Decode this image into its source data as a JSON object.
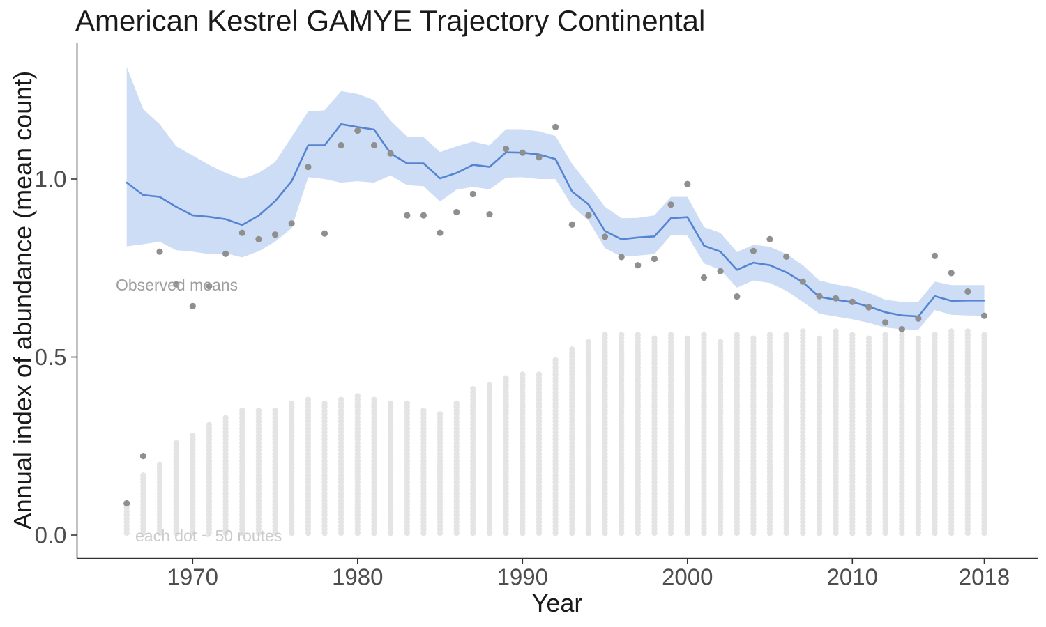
{
  "figure": {
    "title": "American Kestrel GAMYE Trajectory Continental",
    "xlabel": "Year",
    "ylabel": "Annual index of abundance (mean count)",
    "annotation_observed": "Observed means",
    "annotation_routes": "each dot ~ 50 routes"
  },
  "chart_data": {
    "type": "line",
    "title": "American Kestrel GAMYE Trajectory Continental",
    "xlabel": "Year",
    "ylabel": "Annual index of abundance (mean count)",
    "legend_position": "none",
    "grid": false,
    "xlim": [
      1963,
      2021
    ],
    "ylim": [
      -0.06,
      1.38
    ],
    "x_ticks": [
      1970,
      1980,
      1990,
      2000,
      2010,
      2018
    ],
    "x_tick_labels": [
      "1970",
      "1980",
      "1990",
      "2000",
      "2010",
      "2018"
    ],
    "y_tick_values": [
      0.0,
      0.5,
      1.0
    ],
    "y_tick_labels": [
      "0.0",
      "0.5",
      "1.0"
    ],
    "annotations": [
      {
        "text": "Observed means",
        "x": 1969.5,
        "y": 0.7
      },
      {
        "text": "each dot ~ 50 routes",
        "x": 1971,
        "y": 0.0
      }
    ],
    "colors": {
      "line": "#5585d2",
      "ribbon": "#cdddf5",
      "observed": "#8f8f8f",
      "route_dot": "#e4e4e4",
      "axis": "#333333",
      "tick_label": "#4d4d4d"
    },
    "series": {
      "years": [
        1966,
        1967,
        1968,
        1969,
        1970,
        1971,
        1972,
        1973,
        1974,
        1975,
        1976,
        1977,
        1978,
        1979,
        1980,
        1981,
        1982,
        1983,
        1984,
        1985,
        1986,
        1987,
        1988,
        1989,
        1990,
        1991,
        1992,
        1993,
        1994,
        1995,
        1996,
        1997,
        1998,
        1999,
        2000,
        2001,
        2002,
        2003,
        2004,
        2005,
        2006,
        2007,
        2008,
        2009,
        2010,
        2011,
        2012,
        2013,
        2014,
        2015,
        2016,
        2017,
        2018
      ],
      "index": [
        0.99,
        0.955,
        0.95,
        0.922,
        0.898,
        0.894,
        0.887,
        0.871,
        0.897,
        0.938,
        0.994,
        1.095,
        1.095,
        1.154,
        1.146,
        1.139,
        1.072,
        1.044,
        1.044,
        1.002,
        1.017,
        1.04,
        1.034,
        1.075,
        1.074,
        1.069,
        1.056,
        0.965,
        0.929,
        0.854,
        0.831,
        0.836,
        0.839,
        0.89,
        0.893,
        0.813,
        0.796,
        0.745,
        0.765,
        0.758,
        0.738,
        0.71,
        0.669,
        0.661,
        0.654,
        0.642,
        0.626,
        0.617,
        0.614,
        0.671,
        0.658,
        0.659,
        0.659
      ],
      "ci_lower": [
        0.811,
        0.817,
        0.824,
        0.8,
        0.796,
        0.789,
        0.791,
        0.78,
        0.797,
        0.824,
        0.862,
        1.005,
        1.0,
        0.99,
        0.994,
        0.99,
        1.01,
        0.983,
        0.98,
        0.937,
        0.97,
        0.978,
        0.971,
        1.004,
        1.005,
        1.0,
        1.0,
        0.924,
        0.883,
        0.806,
        0.782,
        0.785,
        0.789,
        0.842,
        0.841,
        0.763,
        0.745,
        0.695,
        0.715,
        0.708,
        0.686,
        0.655,
        0.622,
        0.614,
        0.606,
        0.596,
        0.583,
        0.578,
        0.577,
        0.632,
        0.619,
        0.617,
        0.616
      ],
      "ci_upper": [
        1.315,
        1.196,
        1.154,
        1.092,
        1.066,
        1.04,
        1.017,
        1.001,
        1.017,
        1.048,
        1.118,
        1.19,
        1.193,
        1.247,
        1.239,
        1.222,
        1.164,
        1.119,
        1.118,
        1.076,
        1.092,
        1.105,
        1.095,
        1.14,
        1.14,
        1.134,
        1.121,
        1.043,
        0.984,
        0.922,
        0.89,
        0.891,
        0.898,
        0.95,
        0.95,
        0.865,
        0.849,
        0.795,
        0.815,
        0.81,
        0.789,
        0.758,
        0.715,
        0.704,
        0.696,
        0.681,
        0.661,
        0.655,
        0.655,
        0.712,
        0.702,
        0.702,
        0.702
      ],
      "observed_means": [
        0.089,
        0.222,
        0.796,
        0.704,
        0.643,
        0.699,
        0.79,
        0.849,
        0.831,
        0.844,
        0.875,
        1.034,
        0.847,
        1.095,
        1.136,
        1.095,
        1.072,
        0.898,
        0.898,
        0.849,
        0.907,
        0.958,
        0.901,
        1.085,
        1.074,
        1.061,
        1.146,
        0.872,
        0.898,
        0.838,
        0.781,
        0.758,
        0.776,
        0.928,
        0.986,
        0.723,
        0.741,
        0.67,
        0.798,
        0.831,
        0.782,
        0.712,
        0.671,
        0.665,
        0.655,
        0.64,
        0.597,
        0.578,
        0.608,
        0.784,
        0.736,
        0.684,
        0.616
      ],
      "route_dots": [
        8,
        17,
        20,
        26,
        28,
        31,
        33,
        35,
        35,
        35,
        37,
        38,
        37,
        38,
        39,
        38,
        37,
        37,
        35,
        34,
        37,
        41,
        42,
        44,
        45,
        45,
        49,
        52,
        54,
        56,
        56,
        56,
        55,
        56,
        55,
        56,
        54,
        56,
        55,
        56,
        56,
        57,
        55,
        57,
        56,
        55,
        56,
        56,
        55,
        56,
        57,
        57,
        56
      ]
    }
  }
}
